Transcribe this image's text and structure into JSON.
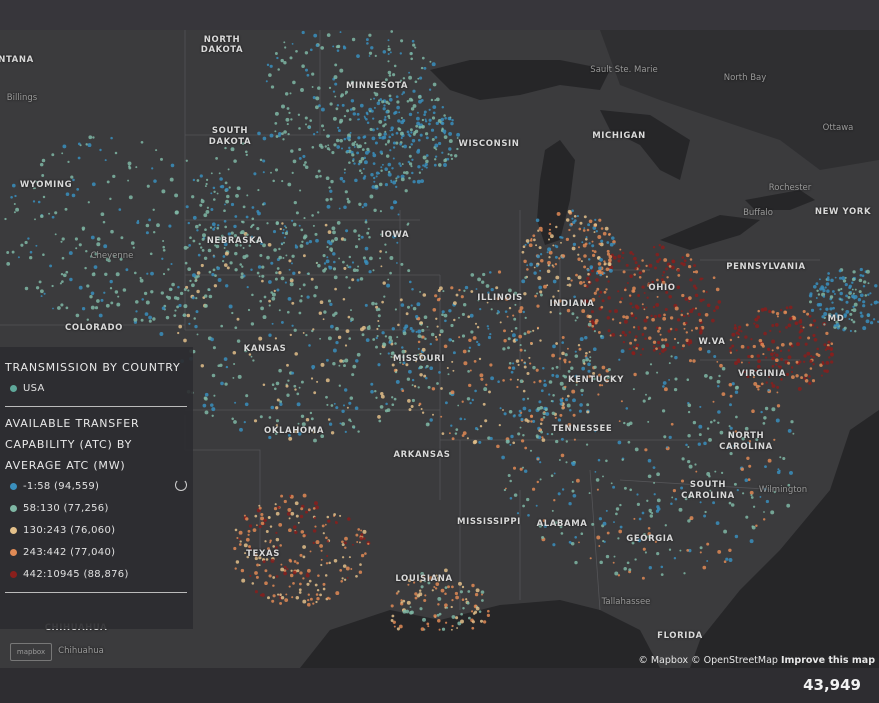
{
  "legend": {
    "title1": "TRANSMISSION BY COUNTRY",
    "country": {
      "label": "USA",
      "color": "#5fa89a"
    },
    "title2_lines": [
      "AVAILABLE TRANSFER",
      "CAPABILITY (ATC) BY",
      "AVERAGE ATC (MW)"
    ],
    "items": [
      {
        "label": "-1:58 (94,559)",
        "color": "#3a8fbd"
      },
      {
        "label": "58:130 (77,256)",
        "color": "#7fb7a4"
      },
      {
        "label": "130:243 (76,060)",
        "color": "#e3c08a"
      },
      {
        "label": "243:442 (77,040)",
        "color": "#e08a55"
      },
      {
        "label": "442:10945 (88,876)",
        "color": "#8a1f1c"
      }
    ]
  },
  "map_labels": {
    "north_dakota": "NORTH DAKOTA",
    "montana": "NTANA",
    "billings": "Billings",
    "minnesota": "MINNESOTA",
    "south_dakota": "SOUTH DAKOTA",
    "wyoming": "WYOMING",
    "wisconsin": "WISCONSIN",
    "michigan": "MICHIGAN",
    "sault": "Sault Ste. Marie",
    "north_bay": "North Bay",
    "ottawa": "Ottawa",
    "rochester": "Rochester",
    "buffalo": "Buffalo",
    "new_york": "NEW YORK",
    "nebraska": "NEBRASKA",
    "cheyenne": "Cheyenne",
    "iowa": "IOWA",
    "illinois": "ILLINOIS",
    "indiana": "INDIANA",
    "ohio": "OHIO",
    "pennsylvania": "PENNSYLVANIA",
    "colorado": "COLORADO",
    "kansas": "KANSAS",
    "missouri": "MISSOURI",
    "kentucky": "KENTUCKY",
    "wva": "W.VA",
    "virginia": "VIRGINIA",
    "md": "MD",
    "oklahoma": "OKLAHOMA",
    "arkansas": "ARKANSAS",
    "tennessee": "TENNESSEE",
    "north_carolina": "NORTH CAROLINA",
    "south_carolina": "SOUTH CAROLINA",
    "wilmington": "Wilmington",
    "texas": "TEXAS",
    "mississippi": "MISSISSIPPI",
    "alabama": "ALABAMA",
    "georgia": "GEORGIA",
    "louisiana": "LOUISIANA",
    "tallahassee": "Tallahassee",
    "florida": "FLORIDA",
    "chihuahua_state": "CHIHUAHUA",
    "chihuahua_city": "Chihuahua"
  },
  "attribution": {
    "mapbox": "© Mapbox",
    "osm": "© OpenStreetMap",
    "improve": "Improve this map"
  },
  "logo_text": "mapbox",
  "point_count": "43,949"
}
